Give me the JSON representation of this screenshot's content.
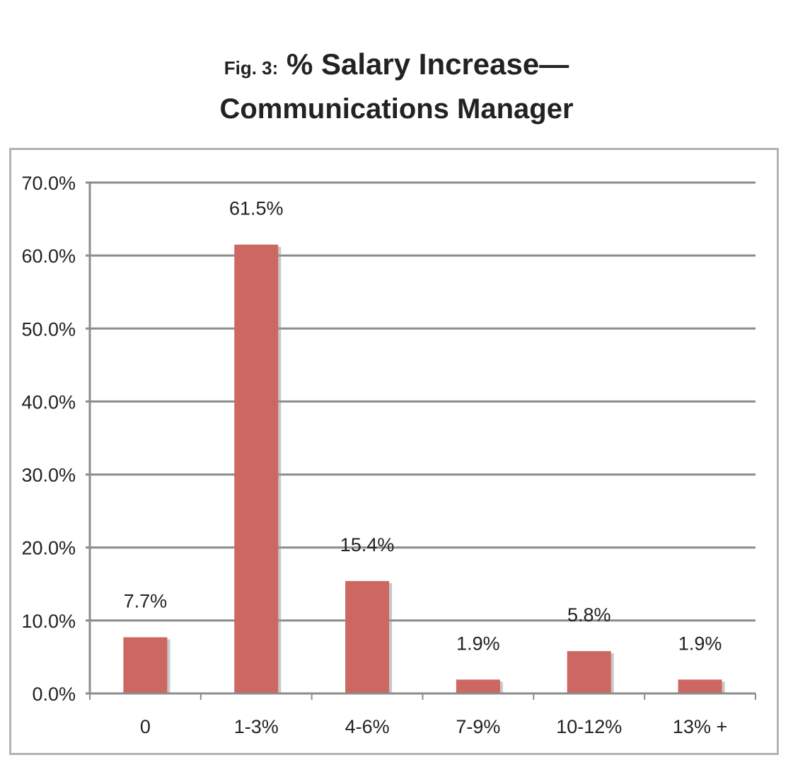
{
  "title": {
    "prefix": "Fig. 3:",
    "main": "% Salary Increase—",
    "line2": "Communications Manager"
  },
  "chart_data": {
    "type": "bar",
    "categories": [
      "0",
      "1-3%",
      "4-6%",
      "7-9%",
      "10-12%",
      "13% +"
    ],
    "values": [
      7.7,
      61.5,
      15.4,
      1.9,
      5.8,
      1.9
    ],
    "data_labels": [
      "7.7%",
      "61.5%",
      "15.4%",
      "1.9%",
      "5.8%",
      "1.9%"
    ],
    "ylim": [
      0,
      70
    ],
    "yticks": [
      0,
      10,
      20,
      30,
      40,
      50,
      60,
      70
    ],
    "ytick_labels": [
      "0.0%",
      "10.0%",
      "20.0%",
      "30.0%",
      "40.0%",
      "50.0%",
      "60.0%",
      "70.0%"
    ],
    "xlabel": "",
    "ylabel": "",
    "grid": true,
    "legend": "none",
    "bar_color": "#cd6761",
    "grid_color": "#8c8c8c"
  }
}
